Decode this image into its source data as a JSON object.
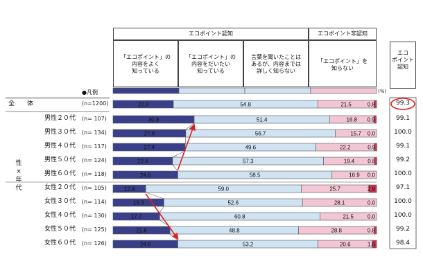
{
  "chart_data": {
    "type": "bar",
    "subtype": "100% stacked horizontal bar",
    "header": {
      "group_recognized": "エコポイント認知",
      "group_unrecognized": "エコポイント非認知",
      "total_column": "エコ\nポイント\n認知",
      "legend_label": "●凡例",
      "percent_mark": "(%)"
    },
    "series": [
      {
        "name": "「エコポイント」の\n内容をよく\n知っている",
        "color": "#3a3f8a"
      },
      {
        "name": "「エコポイント」の\n内容をだいたい\n知っている",
        "color": "#cfe3f2"
      },
      {
        "name": "言葉を聞いたことは\nあるが、内容までは\n詳しく知らない",
        "color": "#cfe3f2"
      },
      {
        "name": "「エコポイント」を\n知らない",
        "color": "#f2c6d4"
      },
      {
        "name": "",
        "color": "#cc3355"
      }
    ],
    "side_labels": {
      "all": "全　　体",
      "group": "性\n×\n年\n代"
    },
    "rows": [
      {
        "label": "",
        "n": "(n=1200)",
        "values": [
          22.9,
          54.8,
          0,
          21.5,
          0.8
        ],
        "labels": [
          "22.9",
          "54.8",
          "",
          "21.5",
          "0.8"
        ],
        "total": "99.3"
      },
      {
        "label": "男性２０代",
        "n": "(n= 107)",
        "values": [
          30.8,
          51.4,
          0,
          16.8,
          0.9
        ],
        "labels": [
          "30.8",
          "51.4",
          "",
          "16.8",
          "0.9"
        ],
        "total": "99.1"
      },
      {
        "label": "男性３０代",
        "n": "(n= 134)",
        "values": [
          27.6,
          56.7,
          0,
          15.7,
          0.0
        ],
        "labels": [
          "27.6",
          "56.7",
          "",
          "15.7",
          "0.0"
        ],
        "total": "100.0"
      },
      {
        "label": "男性４０代",
        "n": "(n= 117)",
        "values": [
          27.4,
          49.6,
          0,
          22.2,
          0.9
        ],
        "labels": [
          "27.4",
          "49.6",
          "",
          "22.2",
          "0.9"
        ],
        "total": "99.1"
      },
      {
        "label": "男性５０代",
        "n": "(n= 124)",
        "values": [
          22.6,
          57.3,
          0,
          19.4,
          0.8
        ],
        "labels": [
          "22.6",
          "57.3",
          "",
          "19.4",
          "0.8"
        ],
        "total": "99.2"
      },
      {
        "label": "男性６０代",
        "n": "(n= 118)",
        "values": [
          24.6,
          58.5,
          0,
          16.9,
          0.0
        ],
        "labels": [
          "24.6",
          "58.5",
          "",
          "16.9",
          "0.0"
        ],
        "total": "100.0"
      },
      {
        "label": "女性２０代",
        "n": "(n= 105)",
        "values": [
          12.4,
          59.0,
          0,
          25.7,
          2.9
        ],
        "labels": [
          "12.4",
          "59.0",
          "",
          "25.7",
          "2.9"
        ],
        "total": "97.1"
      },
      {
        "label": "女性３０代",
        "n": "(n= 114)",
        "values": [
          19.3,
          52.6,
          0,
          28.1,
          0.0
        ],
        "labels": [
          "19.3",
          "52.6",
          "",
          "28.1",
          "0.0"
        ],
        "total": "100.0"
      },
      {
        "label": "女性４０代",
        "n": "(n= 130)",
        "values": [
          17.7,
          60.8,
          0,
          21.5,
          0.0
        ],
        "labels": [
          "17.7",
          "60.8",
          "",
          "21.5",
          "0.0"
        ],
        "total": "100.0"
      },
      {
        "label": "女性５０代",
        "n": "(n= 125)",
        "values": [
          21.6,
          48.8,
          0,
          28.8,
          0.8
        ],
        "labels": [
          "21.6",
          "48.8",
          "",
          "28.8",
          "0.8"
        ],
        "total": "99.2"
      },
      {
        "label": "女性６０代",
        "n": "(n= 126)",
        "values": [
          24.6,
          53.2,
          0,
          20.6,
          1.6
        ],
        "labels": [
          "24.6",
          "53.2",
          "",
          "20.6",
          "1.6"
        ],
        "total": "98.4"
      }
    ],
    "highlight": {
      "row": 0,
      "column": "total",
      "color": "#e02020"
    },
    "arrows": [
      {
        "from_row": 5,
        "to_row": 1,
        "color": "#e02020"
      },
      {
        "from_row": 6,
        "to_row": 10,
        "color": "#e02020"
      }
    ],
    "xlim": [
      0,
      100
    ]
  }
}
